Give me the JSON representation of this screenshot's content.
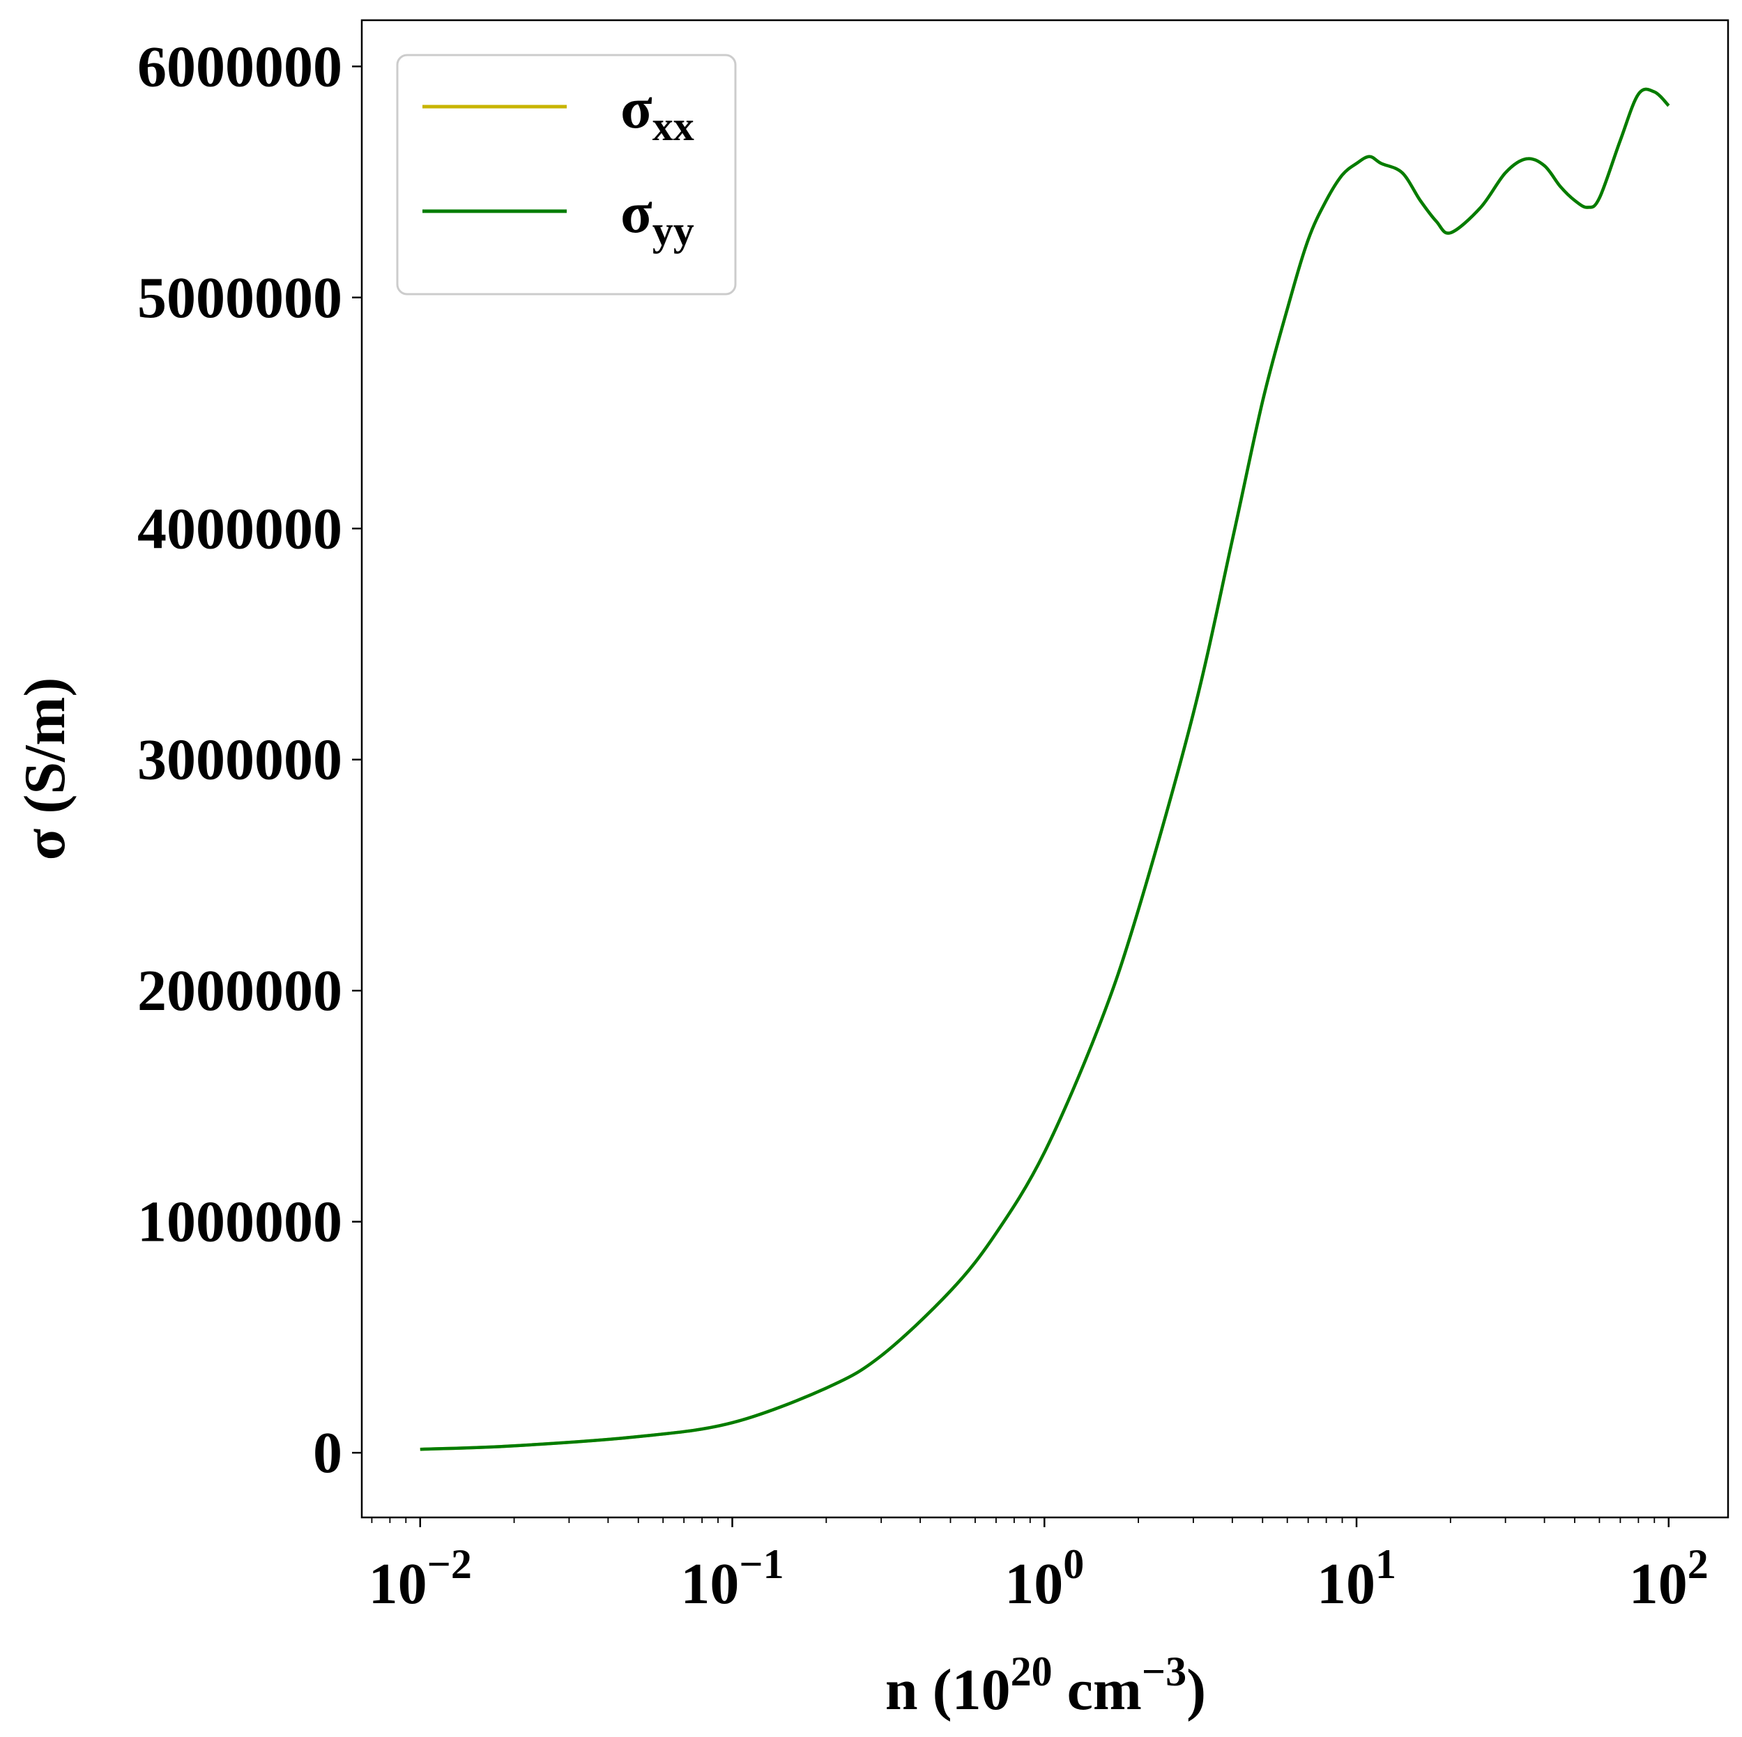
{
  "chart_data": {
    "type": "line",
    "title": "",
    "xlabel": {
      "base": "n (10",
      "sup1": "20",
      "mid": " cm",
      "sup2": "−3",
      "end": ")"
    },
    "ylabel": "σ (S/m)",
    "xscale": "log",
    "xlim": [
      0.0065,
      155
    ],
    "ylim": [
      -280000,
      6200000
    ],
    "grid": false,
    "legend_position": "top-left",
    "x_ticks": [
      {
        "value": 0.01,
        "base": "10",
        "exp": "−2"
      },
      {
        "value": 0.1,
        "base": "10",
        "exp": "−1"
      },
      {
        "value": 1,
        "base": "10",
        "exp": "0"
      },
      {
        "value": 10,
        "base": "10",
        "exp": "1"
      },
      {
        "value": 100,
        "base": "10",
        "exp": "2"
      }
    ],
    "y_ticks": [
      {
        "value": 0,
        "label": "0"
      },
      {
        "value": 1000000,
        "label": "1000000"
      },
      {
        "value": 2000000,
        "label": "2000000"
      },
      {
        "value": 3000000,
        "label": "3000000"
      },
      {
        "value": 4000000,
        "label": "4000000"
      },
      {
        "value": 5000000,
        "label": "5000000"
      },
      {
        "value": 6000000,
        "label": "6000000"
      }
    ],
    "series": [
      {
        "name": "σ",
        "subscript": "xx",
        "color": "#c8b400",
        "x": [
          0.01,
          0.02,
          0.05,
          0.1,
          0.2,
          0.3,
          0.5,
          0.7,
          1.0,
          1.5,
          2.0,
          3.0,
          4.0,
          5.0,
          6.0,
          7.0,
          8.0,
          9.0,
          10.0,
          11.0,
          12.0,
          14.0,
          16.0,
          18.0,
          20.0,
          25.0,
          30.0,
          35.0,
          40.0,
          45.0,
          50.0,
          55.0,
          60.0,
          70.0,
          80.0,
          90.0,
          100.0
        ],
        "y": [
          15000,
          30000,
          70000,
          130000,
          280000,
          420000,
          700000,
          950000,
          1300000,
          1850000,
          2350000,
          3200000,
          3950000,
          4550000,
          4950000,
          5250000,
          5420000,
          5530000,
          5580000,
          5610000,
          5580000,
          5540000,
          5420000,
          5330000,
          5280000,
          5390000,
          5540000,
          5600000,
          5570000,
          5480000,
          5420000,
          5390000,
          5430000,
          5680000,
          5880000,
          5890000,
          5830000
        ]
      },
      {
        "name": "σ",
        "subscript": "yy",
        "color": "#007c00",
        "x": [
          0.01,
          0.02,
          0.05,
          0.1,
          0.2,
          0.3,
          0.5,
          0.7,
          1.0,
          1.5,
          2.0,
          3.0,
          4.0,
          5.0,
          6.0,
          7.0,
          8.0,
          9.0,
          10.0,
          11.0,
          12.0,
          14.0,
          16.0,
          18.0,
          20.0,
          25.0,
          30.0,
          35.0,
          40.0,
          45.0,
          50.0,
          55.0,
          60.0,
          70.0,
          80.0,
          90.0,
          100.0
        ],
        "y": [
          15000,
          30000,
          70000,
          130000,
          280000,
          420000,
          700000,
          950000,
          1300000,
          1850000,
          2350000,
          3200000,
          3950000,
          4550000,
          4950000,
          5250000,
          5420000,
          5530000,
          5580000,
          5610000,
          5580000,
          5540000,
          5420000,
          5330000,
          5280000,
          5390000,
          5540000,
          5600000,
          5570000,
          5480000,
          5420000,
          5390000,
          5430000,
          5680000,
          5880000,
          5890000,
          5830000
        ]
      }
    ]
  }
}
